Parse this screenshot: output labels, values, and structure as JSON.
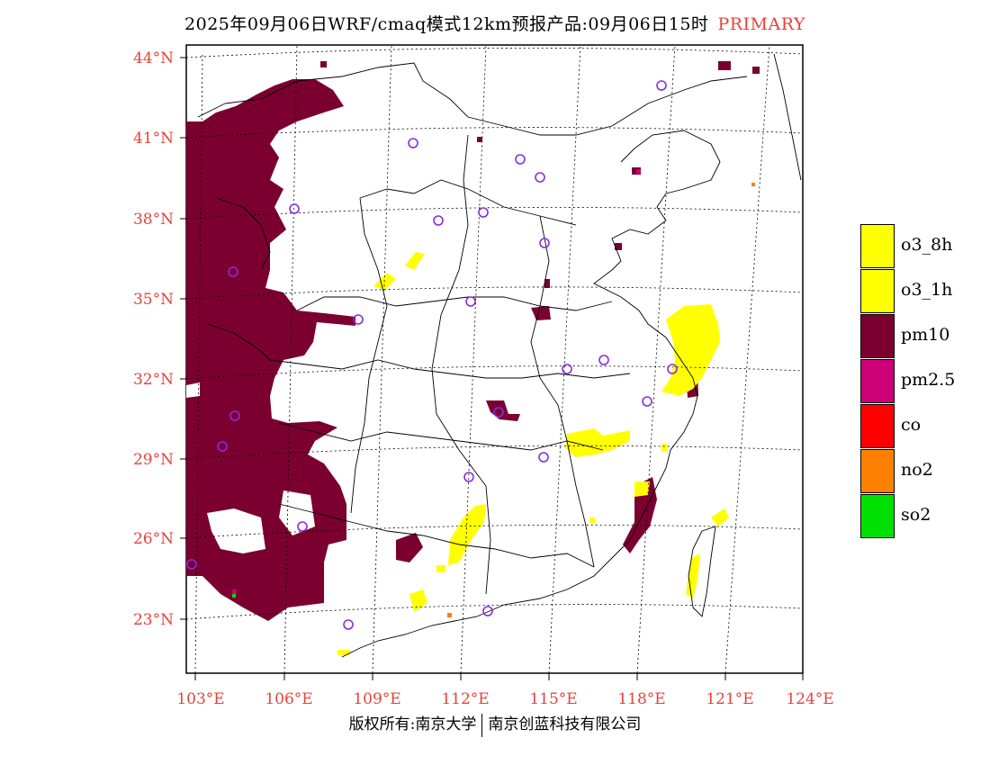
{
  "title": {
    "main": "2025年09月06日WRF/cmaq模式12km预报产品:09月06日15时",
    "tag": "PRIMARY"
  },
  "axes": {
    "lat_labels": [
      "44°N",
      "41°N",
      "38°N",
      "35°N",
      "32°N",
      "29°N",
      "26°N",
      "23°N"
    ],
    "lon_labels": [
      "103°E",
      "106°E",
      "109°E",
      "112°E",
      "115°E",
      "118°E",
      "121°E",
      "124°E"
    ]
  },
  "legend": {
    "items": [
      {
        "label": "o3_8h",
        "color": "#ffff00"
      },
      {
        "label": "o3_1h",
        "color": "#ffff00"
      },
      {
        "label": "pm10",
        "color": "#7b0030"
      },
      {
        "label": "pm2.5",
        "color": "#cc0077"
      },
      {
        "label": "co",
        "color": "#ff0000"
      },
      {
        "label": "no2",
        "color": "#ff8000"
      },
      {
        "label": "so2",
        "color": "#00e000"
      }
    ]
  },
  "footer": {
    "left": "版权所有:南京大学",
    "right": "南京创蓝科技有限公司"
  },
  "colors": {
    "pm10": "#7b0030",
    "o3": "#ffff00",
    "pm25": "#cc0077",
    "no2": "#ff8000",
    "station": "#8a2be2",
    "axis_label": "#e8413a"
  }
}
